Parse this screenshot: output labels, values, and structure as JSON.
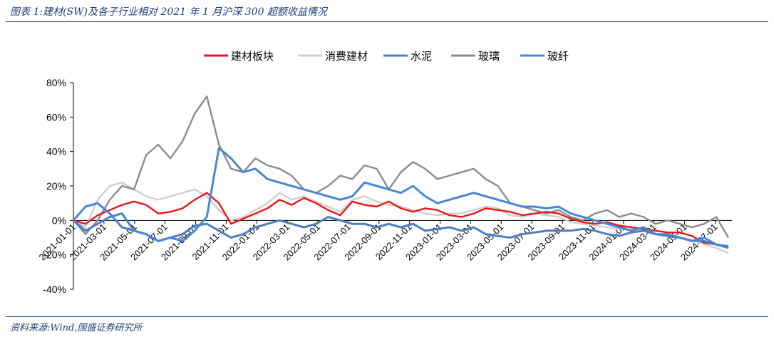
{
  "caption": "图表 1:建材(SW)及各子行业相对 2021 年 1 月沪深 300 超额收益情况",
  "source": "资料来源:Wind,国盛证券研究所",
  "chart_data": {
    "type": "line",
    "title": "",
    "xlabel": "",
    "ylabel": "",
    "ylim": [
      -40,
      80
    ],
    "y_ticks": [
      80,
      60,
      40,
      20,
      0,
      -20,
      -40
    ],
    "y_tick_labels": [
      "80%",
      "60%",
      "40%",
      "20%",
      "0%",
      "-20%",
      "-40%"
    ],
    "x_tick_labels": [
      "2021-01-01",
      "2021-03-01",
      "2021-05-01",
      "2021-07-01",
      "2021-09-01",
      "2021-11-01",
      "2022-01-01",
      "2022-03-01",
      "2022-05-01",
      "2022-07-01",
      "2022-09-01",
      "2022-11-01",
      "2023-01-01",
      "2023-03-01",
      "2023-05-01",
      "2023-07-01",
      "2023-09-01",
      "2023-11-01",
      "2024-01-01",
      "2024-03-01",
      "2024-05-01",
      "2024-07-01"
    ],
    "legend_position": "top-center",
    "series": [
      {
        "name": "建材板块",
        "color": "#e8161b",
        "values": [
          0,
          -2,
          3,
          6,
          9,
          11,
          9,
          4,
          5,
          7,
          12,
          16,
          10,
          -2,
          1,
          4,
          7,
          12,
          9,
          13,
          10,
          6,
          3,
          11,
          9,
          8,
          11,
          7,
          5,
          7,
          6,
          3,
          2,
          4,
          7,
          6,
          5,
          3,
          4,
          5,
          4,
          1,
          -1,
          -2,
          -1,
          -3,
          -4,
          -5,
          -6,
          -7,
          -7,
          -9,
          -13,
          -14,
          -15
        ]
      },
      {
        "name": "消费建材",
        "color": "#cfcfcf",
        "values": [
          0,
          -4,
          12,
          20,
          22,
          18,
          14,
          12,
          14,
          16,
          18,
          14,
          6,
          0,
          2,
          6,
          10,
          16,
          12,
          14,
          11,
          8,
          5,
          12,
          14,
          11,
          9,
          8,
          6,
          4,
          3,
          4,
          4,
          6,
          8,
          7,
          3,
          2,
          4,
          3,
          2,
          -1,
          -2,
          -3,
          -4,
          -5,
          -5,
          -6,
          -8,
          -9,
          -10,
          -11,
          -14,
          -16,
          -19
        ]
      },
      {
        "name": "水泥",
        "color": "#4a7fc0",
        "values": [
          0,
          -6,
          -2,
          2,
          4,
          -6,
          -8,
          -12,
          -10,
          -8,
          -3,
          -2,
          -6,
          -10,
          -8,
          -4,
          -2,
          0,
          -2,
          -4,
          -2,
          2,
          0,
          -2,
          -2,
          -4,
          -2,
          -4,
          -2,
          -6,
          -5,
          -4,
          -6,
          -4,
          -8,
          -9,
          -10,
          -8,
          -7,
          -6,
          -6,
          -6,
          -5,
          -6,
          -8,
          -9,
          -7,
          -6,
          -8,
          -9,
          -10,
          -12,
          -12,
          -14,
          -15
        ]
      },
      {
        "name": "玻璃",
        "color": "#8c8c8c",
        "values": [
          0,
          -8,
          0,
          12,
          20,
          18,
          38,
          44,
          36,
          46,
          62,
          72,
          44,
          30,
          28,
          36,
          32,
          30,
          26,
          18,
          16,
          20,
          26,
          24,
          32,
          30,
          18,
          28,
          34,
          30,
          24,
          26,
          28,
          30,
          24,
          20,
          10,
          8,
          6,
          4,
          6,
          2,
          0,
          4,
          6,
          2,
          4,
          2,
          -2,
          0,
          -2,
          -4,
          -2,
          2,
          -10
        ]
      },
      {
        "name": "玻纤",
        "color": "#4a86d4",
        "values": [
          0,
          8,
          10,
          4,
          -4,
          -6,
          -8,
          -12,
          -10,
          -12,
          -6,
          2,
          42,
          36,
          28,
          30,
          24,
          22,
          20,
          18,
          16,
          14,
          12,
          14,
          22,
          20,
          18,
          16,
          20,
          14,
          10,
          12,
          14,
          16,
          14,
          12,
          10,
          8,
          8,
          7,
          8,
          4,
          2,
          0,
          -2,
          -4,
          -6,
          -4,
          -8,
          -8,
          -10,
          -12,
          -10,
          -14,
          -16
        ]
      }
    ]
  }
}
